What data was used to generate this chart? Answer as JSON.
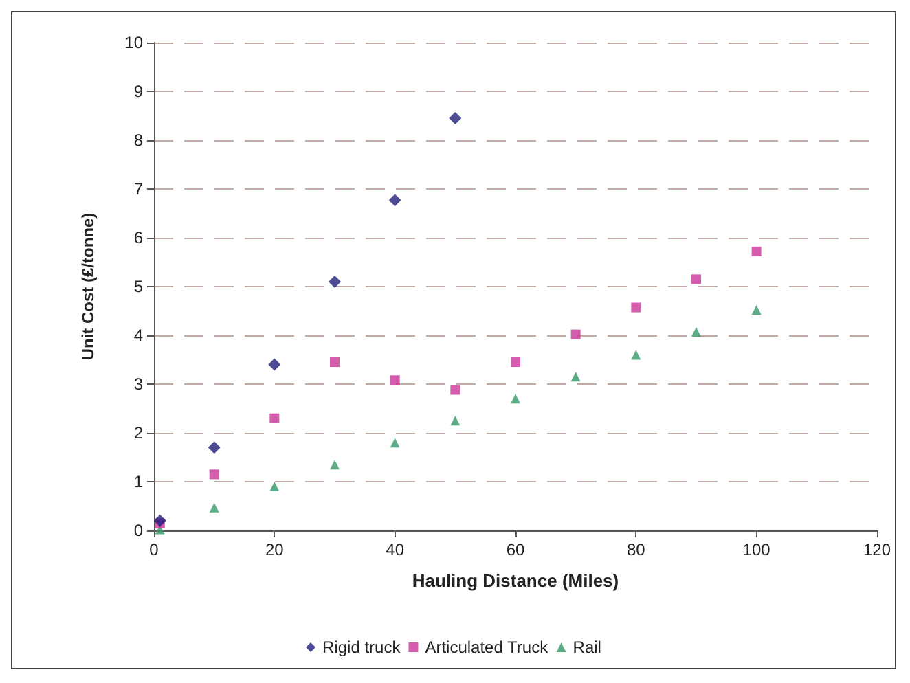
{
  "chart_data": {
    "type": "scatter",
    "xlabel": "Hauling Distance (Miles)",
    "ylabel": "Unit Cost (£/tonne)",
    "xlim": [
      0,
      120
    ],
    "xticks": [
      0,
      20,
      40,
      60,
      80,
      100,
      120
    ],
    "ylim": [
      0,
      10
    ],
    "yticks": [
      0,
      1,
      2,
      3,
      4,
      5,
      6,
      7,
      8,
      9,
      10
    ],
    "grid": "y",
    "legend": "bottom",
    "series": [
      {
        "name": "Rigid truck",
        "color": "#1f1f7a",
        "marker": "diamond",
        "x": [
          1,
          10,
          20,
          30,
          40,
          50
        ],
        "values": [
          0.2,
          1.7,
          3.4,
          5.1,
          6.77,
          8.45
        ]
      },
      {
        "name": "Articulated Truck",
        "color": "#cc3399",
        "marker": "square",
        "x": [
          1,
          10,
          20,
          30,
          40,
          50,
          60,
          70,
          80,
          90,
          100
        ],
        "values": [
          0.15,
          1.15,
          2.3,
          3.45,
          3.08,
          2.88,
          3.45,
          4.02,
          4.57,
          5.15,
          5.72
        ]
      },
      {
        "name": "Rail",
        "color": "#339966",
        "marker": "triangle",
        "x": [
          1,
          10,
          20,
          30,
          40,
          50,
          60,
          70,
          80,
          90,
          100
        ],
        "values": [
          0.02,
          0.47,
          0.9,
          1.35,
          1.8,
          2.25,
          2.7,
          3.15,
          3.6,
          4.07,
          4.52
        ]
      }
    ]
  }
}
